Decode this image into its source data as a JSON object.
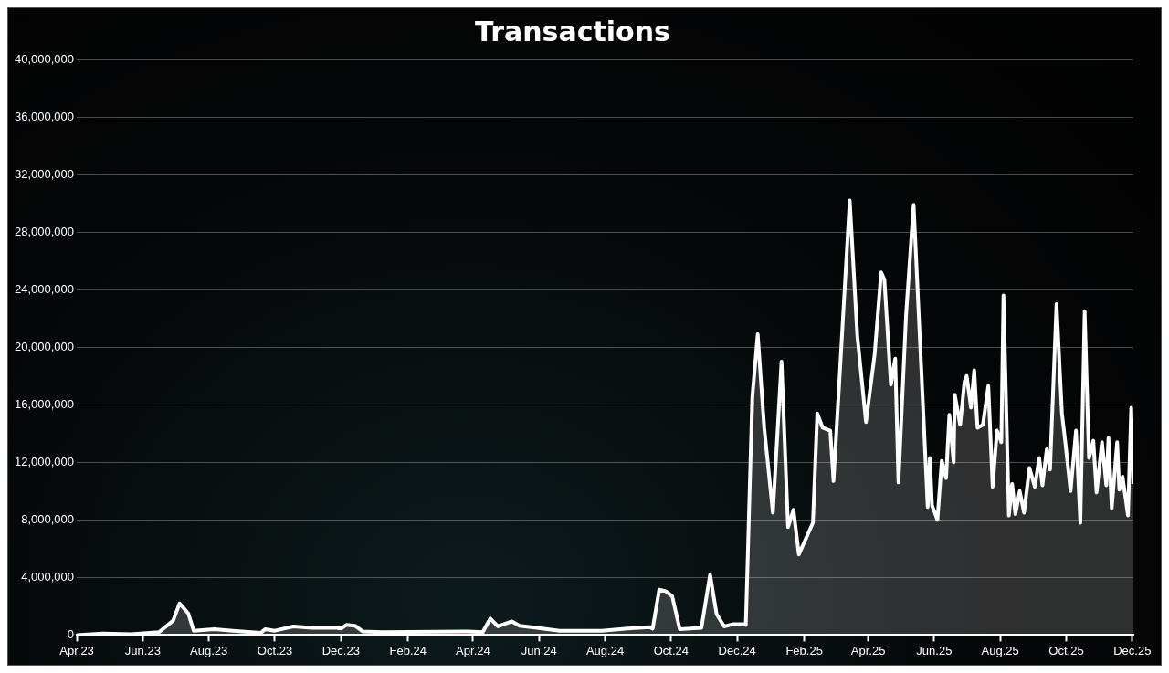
{
  "chart_data": {
    "type": "area",
    "title": "Transactions",
    "x": [
      "2023-04-01",
      "2023-04-25",
      "2023-05-21",
      "2023-06-16",
      "2023-06-29",
      "2023-07-05",
      "2023-07-13",
      "2023-07-18",
      "2023-08-06",
      "2023-08-23",
      "2023-09-18",
      "2023-09-22",
      "2023-10-01",
      "2023-10-18",
      "2023-11-04",
      "2023-11-27",
      "2023-12-01",
      "2023-12-06",
      "2023-12-14",
      "2023-12-21",
      "2024-01-08",
      "2024-03-27",
      "2024-04-10",
      "2024-04-17",
      "2024-04-24",
      "2024-05-07",
      "2024-05-14",
      "2024-05-30",
      "2024-06-20",
      "2024-07-29",
      "2024-08-22",
      "2024-09-11",
      "2024-09-14",
      "2024-09-20",
      "2024-09-26",
      "2024-10-02",
      "2024-10-09",
      "2024-10-29",
      "2024-11-06",
      "2024-11-12",
      "2024-11-19",
      "2024-11-27",
      "2024-12-07",
      "2024-12-09",
      "2024-12-15",
      "2024-12-20",
      "2024-12-26",
      "2025-01-03",
      "2025-01-11",
      "2025-01-17",
      "2025-01-22",
      "2025-01-27",
      "2025-02-09",
      "2025-02-13",
      "2025-02-18",
      "2025-02-25",
      "2025-02-28",
      "2025-03-06",
      "2025-03-15",
      "2025-03-22",
      "2025-03-30",
      "2025-04-07",
      "2025-04-13",
      "2025-04-16",
      "2025-04-22",
      "2025-04-26",
      "2025-04-29",
      "2025-05-06",
      "2025-05-13",
      "2025-05-21",
      "2025-05-26",
      "2025-05-28",
      "2025-05-30",
      "2025-06-04",
      "2025-06-08",
      "2025-06-12",
      "2025-06-15",
      "2025-06-19",
      "2025-06-20",
      "2025-06-25",
      "2025-06-29",
      "2025-07-01",
      "2025-07-05",
      "2025-07-08",
      "2025-07-11",
      "2025-07-16",
      "2025-07-21",
      "2025-07-25",
      "2025-07-29",
      "2025-08-02",
      "2025-08-04",
      "2025-08-09",
      "2025-08-12",
      "2025-08-15",
      "2025-08-19",
      "2025-08-23",
      "2025-08-28",
      "2025-09-02",
      "2025-09-06",
      "2025-09-09",
      "2025-09-13",
      "2025-09-16",
      "2025-09-22",
      "2025-09-27",
      "2025-09-30",
      "2025-10-05",
      "2025-10-10",
      "2025-10-14",
      "2025-10-18",
      "2025-10-22",
      "2025-10-26",
      "2025-10-29",
      "2025-11-03",
      "2025-11-07",
      "2025-11-09",
      "2025-11-12",
      "2025-11-17",
      "2025-11-19",
      "2025-11-22",
      "2025-11-27",
      "2025-11-30",
      "2025-12-02"
    ],
    "series": [
      {
        "color": "#ffffff",
        "values": [
          0,
          100000,
          50000,
          200000,
          1000000,
          2200000,
          1500000,
          300000,
          400000,
          300000,
          150000,
          400000,
          300000,
          600000,
          500000,
          500000,
          450000,
          700000,
          650000,
          250000,
          200000,
          250000,
          200000,
          1150000,
          600000,
          950000,
          650000,
          500000,
          300000,
          300000,
          450000,
          550000,
          450000,
          3150000,
          3050000,
          2700000,
          400000,
          500000,
          4200000,
          1450000,
          600000,
          750000,
          750000,
          700000,
          16500000,
          20900000,
          14400000,
          8500000,
          19000000,
          7500000,
          8700000,
          5600000,
          7800000,
          15400000,
          14400000,
          14200000,
          10700000,
          18400000,
          30200000,
          20800000,
          14800000,
          19500000,
          25200000,
          24700000,
          17400000,
          19200000,
          10600000,
          22200000,
          29900000,
          17000000,
          8900000,
          12300000,
          9000000,
          8000000,
          12100000,
          10900000,
          15300000,
          12000000,
          16700000,
          14600000,
          17600000,
          18000000,
          15800000,
          18400000,
          14400000,
          14600000,
          17300000,
          10300000,
          14200000,
          13400000,
          23600000,
          8300000,
          10500000,
          8400000,
          10000000,
          8500000,
          11600000,
          10300000,
          12300000,
          10400000,
          12900000,
          11500000,
          23000000,
          15400000,
          13500000,
          10000000,
          14200000,
          7800000,
          22500000,
          12300000,
          13500000,
          9900000,
          13400000,
          10400000,
          13700000,
          8800000,
          13400000,
          10100000,
          11000000,
          8300000,
          15800000,
          10500000
        ]
      }
    ],
    "xlim": [
      "2023-04-01",
      "2025-12-02"
    ],
    "xticks": [
      {
        "value": "2023-04",
        "label": "Apr.23"
      },
      {
        "value": "2023-06",
        "label": "Jun.23"
      },
      {
        "value": "2023-08",
        "label": "Aug.23"
      },
      {
        "value": "2023-10",
        "label": "Oct.23"
      },
      {
        "value": "2023-12",
        "label": "Dec.23"
      },
      {
        "value": "2024-02",
        "label": "Feb.24"
      },
      {
        "value": "2024-04",
        "label": "Apr.24"
      },
      {
        "value": "2024-06",
        "label": "Jun.24"
      },
      {
        "value": "2024-08",
        "label": "Aug.24"
      },
      {
        "value": "2024-10",
        "label": "Oct.24"
      },
      {
        "value": "2024-12",
        "label": "Dec.24"
      },
      {
        "value": "2025-02",
        "label": "Feb.25"
      },
      {
        "value": "2025-04",
        "label": "Apr.25"
      },
      {
        "value": "2025-06",
        "label": "Jun.25"
      },
      {
        "value": "2025-08",
        "label": "Aug.25"
      },
      {
        "value": "2025-10",
        "label": "Oct.25"
      },
      {
        "value": "2025-12",
        "label": "Dec.25"
      }
    ],
    "ylim": [
      0,
      40000000
    ],
    "yticks": [
      0,
      {
        "value": 4000000,
        "label": "4,000,000"
      },
      {
        "value": 8000000,
        "label": "8,000,000"
      },
      {
        "value": 12000000,
        "label": "12,000,000"
      },
      {
        "value": 16000000,
        "label": "16,000,000"
      },
      {
        "value": 20000000,
        "label": "20,000,000"
      },
      {
        "value": 24000000,
        "label": "24,000,000"
      },
      {
        "value": 28000000,
        "label": "28,000,000"
      },
      {
        "value": 32000000,
        "label": "32,000,000"
      },
      {
        "value": 36000000,
        "label": "36,000,000"
      },
      {
        "value": 40000000,
        "label": "40,000,000"
      }
    ],
    "grid": "y",
    "legend": false,
    "marker": "none",
    "line_style": "solid"
  }
}
